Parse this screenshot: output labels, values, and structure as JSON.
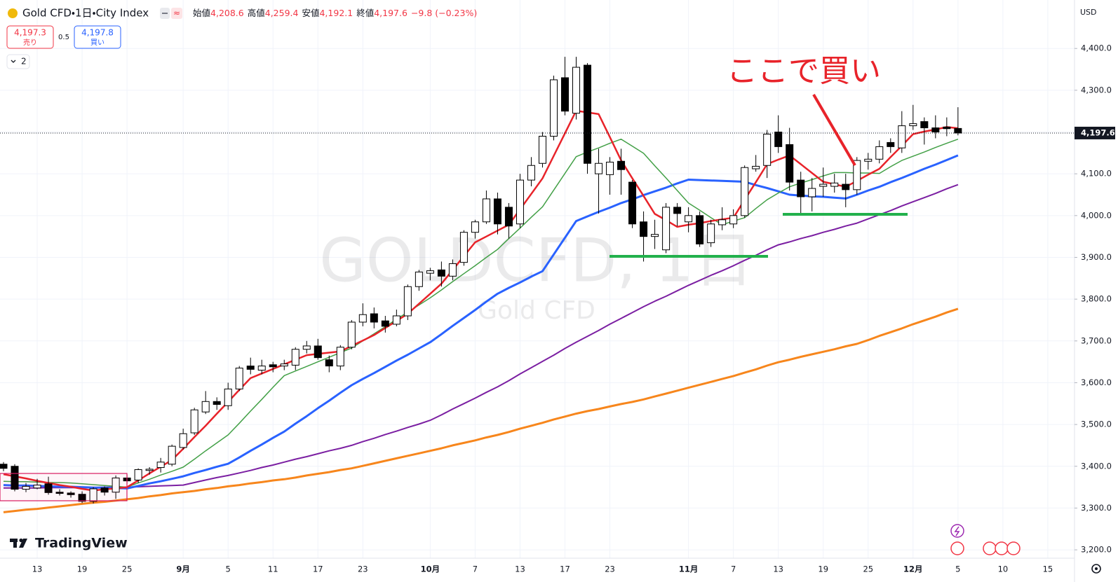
{
  "header": {
    "title": "Gold CFD・1日・City Index",
    "ohlc": [
      {
        "label": "始値",
        "value": "4,208.6"
      },
      {
        "label": "高値",
        "value": "4,259.4"
      },
      {
        "label": "安値",
        "value": "4,192.1"
      },
      {
        "label": "終値",
        "value": "4,197.6"
      }
    ],
    "change": "−9.8 (−0.23%)"
  },
  "trade": {
    "sell_price": "4,197.3",
    "sell_label": "売り",
    "spread": "0.5",
    "buy_price": "4,197.8",
    "buy_label": "買い"
  },
  "indicators_count": "2",
  "watermark": {
    "symbol": "GOLDCFD, 1日",
    "description": "Gold CFD"
  },
  "annotation": "ここで買い",
  "brand": "TradingView",
  "chart_data": {
    "type": "candlestick",
    "currency": "USD",
    "last_price": {
      "value": 4197.6,
      "label": "4,197.6"
    },
    "up_color": "#ffffff",
    "down_color": "#000000",
    "wick_color": "#000000",
    "grid": true,
    "ylim": [
      3180,
      4516
    ],
    "yticks": [
      {
        "value": 3200,
        "label": "3,200.0"
      },
      {
        "value": 3300,
        "label": "3,300.0"
      },
      {
        "value": 3400,
        "label": "3,400.0"
      },
      {
        "value": 3500,
        "label": "3,500.0"
      },
      {
        "value": 3600,
        "label": "3,600.0"
      },
      {
        "value": 3700,
        "label": "3,700.0"
      },
      {
        "value": 3800,
        "label": "3,800.0"
      },
      {
        "value": 3900,
        "label": "3,900.0"
      },
      {
        "value": 4000,
        "label": "4,000.0"
      },
      {
        "value": 4100,
        "label": "4,100.0"
      },
      {
        "value": 4200,
        "label": "4,200.0"
      },
      {
        "value": 4300,
        "label": "4,300.0"
      },
      {
        "value": 4400,
        "label": "4,400.0"
      }
    ],
    "categories": [
      null,
      null,
      null,
      "13",
      null,
      null,
      null,
      "19",
      null,
      null,
      null,
      "25",
      null,
      null,
      null,
      null,
      "9月",
      null,
      null,
      null,
      "5",
      null,
      null,
      null,
      "11",
      null,
      null,
      null,
      "17",
      null,
      null,
      null,
      "23",
      null,
      null,
      null,
      null,
      null,
      "10月",
      null,
      null,
      null,
      "7",
      null,
      null,
      null,
      "13",
      null,
      null,
      null,
      "17",
      null,
      null,
      null,
      "23",
      null,
      null,
      null,
      null,
      null,
      null,
      "11月",
      null,
      null,
      null,
      "7",
      null,
      null,
      null,
      "13",
      null,
      null,
      null,
      "19",
      null,
      null,
      null,
      "25",
      null,
      null,
      null,
      "12月",
      null,
      null,
      null,
      "5",
      null,
      null,
      null,
      "10",
      null,
      null,
      null,
      "15"
    ],
    "open": [
      3405,
      3400,
      3345,
      3348,
      3358,
      3338,
      3336,
      3333,
      3316,
      3348,
      3338,
      3372,
      3367,
      3390,
      3397,
      3405,
      3445,
      3480,
      3530,
      3555,
      3545,
      3585,
      3640,
      3630,
      3643,
      3640,
      3642,
      3680,
      3688,
      3655,
      3640,
      3685,
      3745,
      3765,
      3748,
      3740,
      3760,
      3830,
      3862,
      3870,
      3855,
      3888,
      3960,
      3985,
      4040,
      4020,
      3980,
      4085,
      4125,
      4190,
      4330,
      4245,
      4360,
      4100,
      4098,
      4130,
      4080,
      3985,
      3950,
      3918,
      4020,
      3985,
      4000,
      3935,
      3978,
      3980,
      4000,
      4112,
      4120,
      4200,
      4170,
      4085,
      4045,
      4070,
      4070,
      4075,
      4062,
      4130,
      4135,
      4175,
      4162,
      4215,
      4225,
      4210,
      4212,
      4208.6,
      null,
      null,
      null,
      null,
      null,
      null,
      null,
      null
    ],
    "high": [
      3410,
      3405,
      3360,
      3370,
      3375,
      3345,
      3340,
      3340,
      3350,
      3352,
      3378,
      3380,
      3395,
      3398,
      3420,
      3452,
      3490,
      3540,
      3580,
      3565,
      3600,
      3640,
      3660,
      3655,
      3650,
      3655,
      3685,
      3700,
      3705,
      3665,
      3690,
      3750,
      3790,
      3780,
      3760,
      3775,
      3835,
      3870,
      3875,
      3890,
      3895,
      3965,
      3990,
      4060,
      4055,
      4030,
      4100,
      4140,
      4200,
      4335,
      4380,
      4380,
      4365,
      4160,
      4140,
      4160,
      4085,
      4010,
      3990,
      4030,
      4030,
      4020,
      4010,
      3990,
      4020,
      4015,
      4120,
      4145,
      4205,
      4240,
      4210,
      4105,
      4090,
      4115,
      4100,
      4100,
      4140,
      4150,
      4180,
      4185,
      4250,
      4265,
      4235,
      4240,
      4235,
      4259.4,
      null,
      null,
      null,
      null,
      null,
      null,
      null,
      null
    ],
    "low": [
      3388,
      3340,
      3338,
      3345,
      3332,
      3330,
      3325,
      3312,
      3311,
      3330,
      3322,
      3358,
      3360,
      3380,
      3385,
      3400,
      3440,
      3475,
      3525,
      3535,
      3535,
      3580,
      3620,
      3620,
      3625,
      3630,
      3630,
      3670,
      3655,
      3625,
      3630,
      3680,
      3735,
      3730,
      3720,
      3735,
      3750,
      3820,
      3845,
      3830,
      3845,
      3880,
      3945,
      3980,
      3955,
      3945,
      3970,
      4070,
      4115,
      4180,
      4240,
      4230,
      4100,
      4005,
      4050,
      4050,
      3970,
      3890,
      3920,
      3910,
      3975,
      3960,
      3925,
      3925,
      3965,
      3970,
      3995,
      4105,
      4090,
      4150,
      4060,
      4000,
      4010,
      4045,
      4055,
      4020,
      4050,
      4110,
      4125,
      4150,
      4150,
      4205,
      4170,
      4185,
      4190,
      4192.1,
      null,
      null,
      null,
      null,
      null,
      null,
      null,
      null
    ],
    "close": [
      3395,
      3345,
      3352,
      3355,
      3337,
      3335,
      3332,
      3316,
      3346,
      3338,
      3372,
      3365,
      3392,
      3393,
      3410,
      3448,
      3478,
      3535,
      3555,
      3548,
      3585,
      3635,
      3632,
      3640,
      3638,
      3645,
      3680,
      3688,
      3660,
      3640,
      3685,
      3745,
      3763,
      3745,
      3735,
      3760,
      3830,
      3865,
      3868,
      3855,
      3885,
      3960,
      3985,
      4040,
      3980,
      3975,
      4085,
      4120,
      4190,
      4325,
      4250,
      4355,
      4125,
      4125,
      4128,
      4110,
      3980,
      3950,
      3955,
      4020,
      4005,
      4000,
      3932,
      3980,
      3990,
      4000,
      4115,
      4118,
      4195,
      4165,
      4080,
      4045,
      4065,
      4075,
      4078,
      4062,
      4132,
      4135,
      4165,
      4165,
      4215,
      4220,
      4210,
      4200,
      4208,
      4197.6,
      null,
      null,
      null,
      null,
      null,
      null,
      null,
      null
    ],
    "lines": [
      {
        "color": "#f7861c",
        "values": [
          3290,
          3293,
          3296,
          3298,
          3301,
          3304,
          3307,
          3310,
          3313,
          3315,
          3318,
          3321,
          3324,
          3328,
          3331,
          3335,
          3338,
          3341,
          3345,
          3348,
          3352,
          3355,
          3359,
          3362,
          3366,
          3369,
          3373,
          3378,
          3382,
          3386,
          3391,
          3395,
          3401,
          3407,
          3413,
          3419,
          3425,
          3431,
          3437,
          3443,
          3450,
          3456,
          3462,
          3469,
          3475,
          3482,
          3490,
          3497,
          3504,
          3512,
          3519,
          3526,
          3532,
          3537,
          3543,
          3549,
          3554,
          3560,
          3567,
          3574,
          3581,
          3588,
          3595,
          3602,
          3609,
          3616,
          3624,
          3632,
          3641,
          3649,
          3655,
          3662,
          3668,
          3674,
          3680,
          3687,
          3693,
          3702,
          3712,
          3721,
          3730,
          3740,
          3749,
          3758,
          3768,
          3777,
          null,
          null,
          null,
          null,
          null,
          null,
          null,
          null
        ]
      },
      {
        "color": "#7b1fa2",
        "values": [
          3348,
          3348,
          3348,
          3348,
          3349,
          3349,
          3349,
          3349,
          3349,
          3350,
          3350,
          3350,
          3351,
          3352,
          3353,
          3354,
          3355,
          3361,
          3367,
          3373,
          3378,
          3384,
          3390,
          3397,
          3403,
          3410,
          3417,
          3423,
          3430,
          3437,
          3443,
          3450,
          3459,
          3467,
          3476,
          3484,
          3493,
          3501,
          3510,
          3523,
          3537,
          3550,
          3563,
          3577,
          3590,
          3605,
          3621,
          3636,
          3651,
          3666,
          3682,
          3697,
          3711,
          3725,
          3740,
          3754,
          3768,
          3782,
          3795,
          3807,
          3820,
          3833,
          3845,
          3857,
          3868,
          3880,
          3893,
          3905,
          3918,
          3930,
          3937,
          3945,
          3952,
          3960,
          3967,
          3975,
          3982,
          3992,
          4002,
          4012,
          4023,
          4033,
          4043,
          4053,
          4064,
          4074,
          null,
          null,
          null,
          null,
          null,
          null,
          null,
          null
        ]
      },
      {
        "color": "#2962ff",
        "values": [
          3355,
          3354,
          3354,
          3353,
          3352,
          3351,
          3351,
          3350,
          3349,
          3349,
          3348,
          3347,
          3353,
          3359,
          3364,
          3370,
          3376,
          3384,
          3391,
          3399,
          3406,
          3421,
          3437,
          3452,
          3468,
          3483,
          3502,
          3520,
          3539,
          3557,
          3576,
          3594,
          3609,
          3623,
          3638,
          3653,
          3667,
          3682,
          3697,
          3716,
          3736,
          3755,
          3774,
          3794,
          3813,
          3827,
          3840,
          3854,
          3867,
          3907,
          3947,
          3987,
          3998,
          4009,
          4019,
          4030,
          4039,
          4049,
          4058,
          4067,
          4077,
          4086,
          4085,
          4084,
          4083,
          4082,
          4081,
          4073,
          4066,
          4058,
          4050,
          4048,
          4046,
          4045,
          4043,
          4041,
          4050,
          4060,
          4069,
          4080,
          4090,
          4101,
          4112,
          4122,
          4133,
          4144,
          null,
          null,
          null,
          null,
          null,
          null,
          null,
          null
        ]
      },
      {
        "color": "#43a047",
        "values": [
          3364,
          3363,
          3363,
          3362,
          3361,
          3361,
          3360,
          3358,
          3356,
          3354,
          3352,
          3350,
          3360,
          3369,
          3379,
          3388,
          3398,
          3417,
          3437,
          3456,
          3475,
          3503,
          3532,
          3560,
          3589,
          3617,
          3628,
          3639,
          3650,
          3661,
          3672,
          3683,
          3700,
          3717,
          3734,
          3752,
          3769,
          3786,
          3803,
          3822,
          3842,
          3861,
          3880,
          3900,
          3919,
          3945,
          3970,
          3996,
          4021,
          4061,
          4101,
          4141,
          4152,
          4162,
          4173,
          4183,
          4166,
          4149,
          4119,
          4090,
          4060,
          4030,
          4013,
          3995,
          3978,
          3987,
          3995,
          4017,
          4038,
          4054,
          4069,
          4078,
          4086,
          4095,
          4103,
          4103,
          4102,
          4102,
          4101,
          4117,
          4132,
          4142,
          4152,
          4163,
          4173,
          4183,
          null,
          null,
          null,
          null,
          null,
          null,
          null,
          null
        ]
      },
      {
        "color": "#e8232a",
        "values": [
          3381,
          3376,
          3371,
          3365,
          3360,
          3355,
          3351,
          3346,
          3342,
          3345,
          3347,
          3350,
          3366,
          3383,
          3399,
          3415,
          3442,
          3470,
          3497,
          3526,
          3554,
          3583,
          3611,
          3622,
          3633,
          3644,
          3655,
          3666,
          3669,
          3672,
          3675,
          3688,
          3701,
          3714,
          3731,
          3748,
          3765,
          3789,
          3813,
          3837,
          3870,
          3903,
          3936,
          3950,
          3964,
          3978,
          4015,
          4052,
          4089,
          4143,
          4197,
          4251,
          4247,
          4243,
          4188,
          4132,
          4089,
          4047,
          4004,
          3989,
          3973,
          3978,
          3982,
          3987,
          3991,
          3995,
          4038,
          4080,
          4123,
          4134,
          4144,
          4123,
          4102,
          4081,
          4075,
          4069,
          4083,
          4098,
          4112,
          4140,
          4167,
          4195,
          4201,
          4206,
          4212,
          4209,
          null,
          null,
          null,
          null,
          null,
          null,
          null,
          null
        ]
      }
    ]
  }
}
